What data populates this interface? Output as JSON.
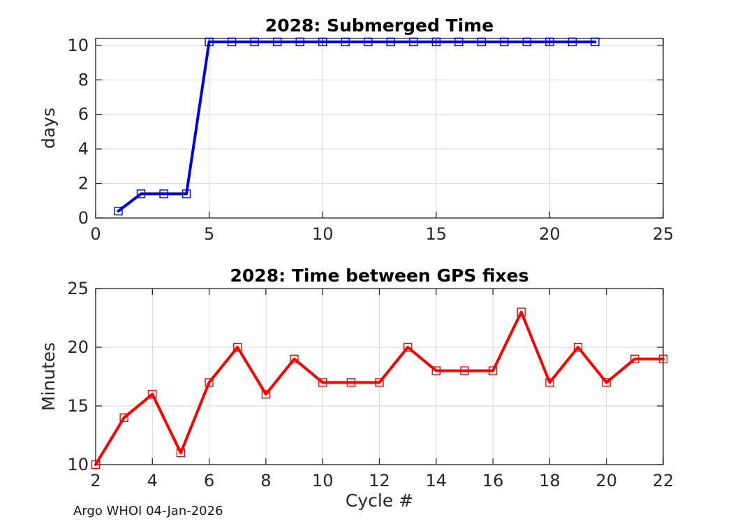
{
  "figure": {
    "background": "#ffffff"
  },
  "footer": {
    "label": "Argo WHOI 04-Jan-2026"
  },
  "colors": {
    "axis": "#262626",
    "grid": "#dcdcdc",
    "title": "#000000",
    "tick_label": "#262626",
    "submerged_line": "#0000ee",
    "gps_line": "#ff0000"
  },
  "chart_data": [
    {
      "type": "line",
      "title": "2028: Submerged Time",
      "xlabel": "",
      "ylabel": "days",
      "xlim": [
        0,
        25
      ],
      "ylim": [
        0,
        10.4
      ],
      "xticks": [
        0,
        5,
        10,
        15,
        20,
        25
      ],
      "yticks": [
        0,
        2,
        4,
        6,
        8,
        10
      ],
      "grid": true,
      "legend": null,
      "color": "#0000ee",
      "marker": "open-square",
      "x": [
        1,
        2,
        3,
        4,
        5,
        6,
        7,
        8,
        9,
        10,
        11,
        12,
        13,
        14,
        15,
        16,
        17,
        18,
        19,
        20,
        21,
        22
      ],
      "y": [
        0.4,
        1.4,
        1.4,
        1.4,
        10.2,
        10.2,
        10.2,
        10.2,
        10.2,
        10.2,
        10.2,
        10.2,
        10.2,
        10.2,
        10.2,
        10.2,
        10.2,
        10.2,
        10.2,
        10.2,
        10.2,
        10.2
      ]
    },
    {
      "type": "line",
      "title": "2028: Time between GPS fixes",
      "xlabel": "Cycle #",
      "ylabel": "Minutes",
      "xlim": [
        2,
        22
      ],
      "ylim": [
        10,
        25
      ],
      "xticks": [
        2,
        4,
        6,
        8,
        10,
        12,
        14,
        16,
        18,
        20,
        22
      ],
      "yticks": [
        10,
        15,
        20,
        25
      ],
      "grid": true,
      "legend": null,
      "color": "#ff0000",
      "marker": "open-square",
      "x": [
        2,
        3,
        4,
        5,
        6,
        7,
        8,
        9,
        10,
        11,
        12,
        13,
        14,
        15,
        16,
        17,
        18,
        19,
        20,
        21,
        22
      ],
      "y": [
        10,
        14,
        16,
        11,
        17,
        20,
        16,
        19,
        17,
        17,
        17,
        20,
        18,
        18,
        18,
        23,
        17,
        20,
        17,
        19,
        19
      ]
    }
  ]
}
